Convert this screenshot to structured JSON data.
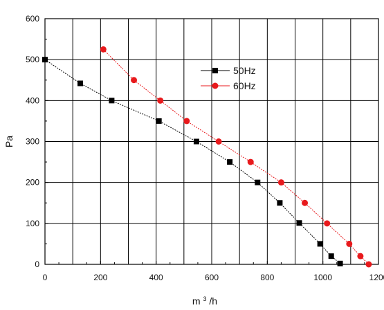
{
  "chart_data": {
    "type": "line",
    "title": "",
    "xlabel": "m",
    "xlabel_sup": "3",
    "xlabel_suffix": "/h",
    "ylabel": "Pa",
    "xlim": [
      0,
      1200
    ],
    "ylim": [
      0,
      600
    ],
    "x_ticks": [
      0,
      200,
      400,
      600,
      800,
      1000,
      1200
    ],
    "y_ticks": [
      0,
      100,
      200,
      300,
      400,
      500,
      600
    ],
    "x_grid_step": 100,
    "y_grid_step": 100,
    "grid": true,
    "legend_position": "inside-upper-right",
    "series": [
      {
        "name": "50Hz",
        "color": "#000000",
        "marker": "square",
        "x": [
          0,
          127,
          240,
          410,
          545,
          665,
          765,
          845,
          915,
          990,
          1030,
          1062
        ],
        "y": [
          500,
          442,
          400,
          350,
          300,
          250,
          200,
          150,
          101,
          50,
          20,
          2
        ]
      },
      {
        "name": "60Hz",
        "color": "#e8191c",
        "marker": "circle",
        "x": [
          210,
          320,
          415,
          510,
          625,
          740,
          850,
          935,
          1015,
          1095,
          1135,
          1165
        ],
        "y": [
          525,
          450,
          400,
          350,
          300,
          250,
          200,
          150,
          100,
          50,
          20,
          0
        ]
      }
    ]
  }
}
